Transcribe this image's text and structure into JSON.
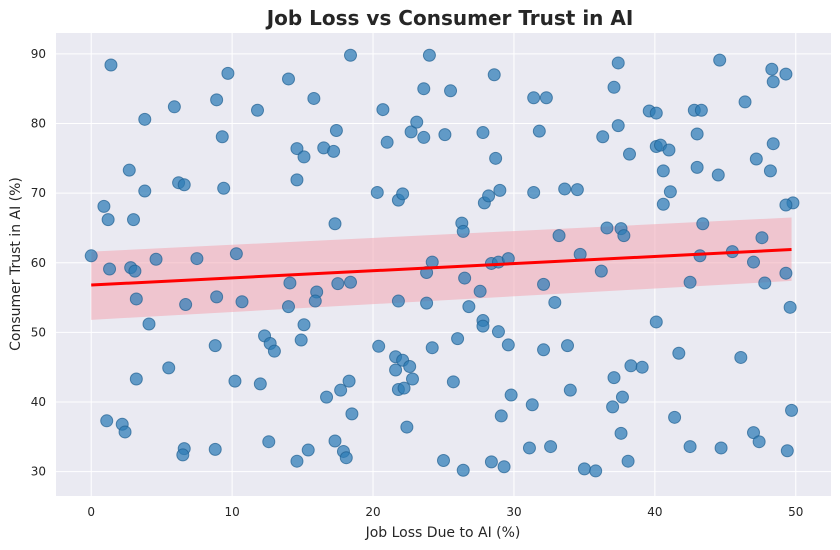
{
  "chart_data": {
    "type": "scatter",
    "title": "Job Loss vs Consumer Trust in AI",
    "xlabel": "Job Loss Due to AI (%)",
    "ylabel": "Consumer Trust in AI (%)",
    "xlim": [
      -2.5,
      52.5
    ],
    "ylim": [
      26.5,
      93
    ],
    "xticks": [
      0,
      10,
      20,
      30,
      40,
      50
    ],
    "yticks": [
      30,
      40,
      50,
      60,
      70,
      80,
      90
    ],
    "grid": true,
    "colors": {
      "background": "#eaeaf2",
      "grid": "#ffffff",
      "points": "#2c7bb6",
      "regression": "#ff0000",
      "ci_band": "#f2a6b3"
    },
    "series": [
      {
        "points": [
          [
            1.4,
            88.4
          ],
          [
            9.7,
            87.2
          ],
          [
            14.0,
            86.4
          ],
          [
            18.4,
            89.8
          ],
          [
            24.0,
            89.8
          ],
          [
            28.6,
            87.0
          ],
          [
            37.4,
            88.7
          ],
          [
            44.6,
            89.1
          ],
          [
            48.3,
            87.8
          ],
          [
            49.3,
            87.1
          ],
          [
            5.9,
            82.4
          ],
          [
            8.9,
            83.4
          ],
          [
            11.8,
            81.9
          ],
          [
            15.8,
            83.6
          ],
          [
            20.7,
            82.0
          ],
          [
            23.6,
            85.0
          ],
          [
            25.5,
            84.7
          ],
          [
            31.4,
            83.7
          ],
          [
            32.3,
            83.7
          ],
          [
            37.1,
            85.2
          ],
          [
            39.6,
            81.8
          ],
          [
            40.1,
            81.5
          ],
          [
            42.8,
            81.9
          ],
          [
            43.3,
            81.9
          ],
          [
            46.4,
            83.1
          ],
          [
            48.4,
            86.0
          ],
          [
            3.8,
            80.6
          ],
          [
            9.3,
            78.1
          ],
          [
            14.6,
            76.4
          ],
          [
            16.5,
            76.5
          ],
          [
            17.4,
            79.0
          ],
          [
            17.2,
            76.0
          ],
          [
            21.0,
            77.3
          ],
          [
            22.7,
            78.8
          ],
          [
            23.1,
            80.2
          ],
          [
            23.6,
            78.0
          ],
          [
            25.1,
            78.4
          ],
          [
            27.8,
            78.7
          ],
          [
            28.7,
            75.0
          ],
          [
            31.8,
            78.9
          ],
          [
            36.3,
            78.1
          ],
          [
            37.4,
            79.7
          ],
          [
            38.2,
            75.6
          ],
          [
            40.1,
            76.7
          ],
          [
            40.4,
            76.9
          ],
          [
            41.0,
            76.2
          ],
          [
            43.0,
            78.5
          ],
          [
            44.5,
            72.6
          ],
          [
            47.2,
            74.9
          ],
          [
            48.4,
            77.1
          ],
          [
            2.7,
            73.3
          ],
          [
            3.8,
            70.3
          ],
          [
            6.2,
            71.5
          ],
          [
            6.6,
            71.2
          ],
          [
            9.4,
            70.7
          ],
          [
            14.6,
            71.9
          ],
          [
            15.1,
            75.2
          ],
          [
            20.3,
            70.1
          ],
          [
            21.8,
            69.0
          ],
          [
            22.1,
            69.9
          ],
          [
            27.9,
            68.6
          ],
          [
            28.2,
            69.6
          ],
          [
            29.0,
            70.4
          ],
          [
            31.4,
            70.1
          ],
          [
            33.6,
            70.6
          ],
          [
            34.5,
            70.5
          ],
          [
            40.6,
            68.4
          ],
          [
            40.6,
            73.2
          ],
          [
            41.1,
            70.2
          ],
          [
            43.0,
            73.7
          ],
          [
            48.2,
            73.2
          ],
          [
            0.0,
            61.0
          ],
          [
            0.9,
            68.1
          ],
          [
            1.2,
            66.2
          ],
          [
            3.0,
            66.2
          ],
          [
            1.3,
            59.1
          ],
          [
            2.8,
            59.3
          ],
          [
            3.1,
            58.8
          ],
          [
            4.6,
            60.5
          ],
          [
            7.5,
            60.6
          ],
          [
            10.3,
            61.3
          ],
          [
            17.3,
            65.6
          ],
          [
            23.8,
            58.6
          ],
          [
            24.2,
            60.1
          ],
          [
            26.3,
            65.7
          ],
          [
            26.4,
            64.5
          ],
          [
            28.4,
            59.9
          ],
          [
            28.9,
            60.1
          ],
          [
            29.6,
            60.6
          ],
          [
            33.2,
            63.9
          ],
          [
            34.7,
            61.2
          ],
          [
            36.2,
            58.8
          ],
          [
            36.6,
            65.0
          ],
          [
            37.6,
            64.9
          ],
          [
            37.8,
            63.9
          ],
          [
            43.2,
            61.0
          ],
          [
            43.4,
            65.6
          ],
          [
            45.5,
            61.6
          ],
          [
            47.0,
            60.1
          ],
          [
            47.6,
            63.6
          ],
          [
            3.2,
            54.8
          ],
          [
            4.1,
            51.2
          ],
          [
            6.7,
            54.0
          ],
          [
            8.9,
            55.1
          ],
          [
            10.7,
            54.4
          ],
          [
            14.0,
            53.7
          ],
          [
            14.1,
            57.1
          ],
          [
            16.0,
            55.8
          ],
          [
            15.9,
            54.5
          ],
          [
            17.5,
            57.0
          ],
          [
            18.4,
            57.2
          ],
          [
            21.8,
            54.5
          ],
          [
            23.8,
            54.2
          ],
          [
            26.5,
            57.8
          ],
          [
            26.8,
            53.7
          ],
          [
            27.6,
            55.9
          ],
          [
            27.8,
            51.7
          ],
          [
            27.8,
            50.9
          ],
          [
            32.1,
            56.9
          ],
          [
            32.9,
            54.3
          ],
          [
            40.1,
            51.5
          ],
          [
            42.5,
            57.2
          ],
          [
            47.8,
            57.1
          ],
          [
            49.3,
            58.5
          ],
          [
            49.6,
            53.6
          ],
          [
            49.8,
            68.6
          ],
          [
            49.3,
            68.3
          ],
          [
            12.3,
            49.5
          ],
          [
            12.7,
            48.4
          ],
          [
            13.0,
            47.3
          ],
          [
            8.8,
            48.1
          ],
          [
            14.9,
            48.9
          ],
          [
            15.1,
            51.1
          ],
          [
            20.4,
            48.0
          ],
          [
            21.6,
            46.5
          ],
          [
            22.1,
            46.0
          ],
          [
            21.6,
            44.6
          ],
          [
            22.6,
            45.1
          ],
          [
            22.8,
            43.3
          ],
          [
            21.8,
            41.8
          ],
          [
            22.2,
            42.0
          ],
          [
            24.2,
            47.8
          ],
          [
            25.7,
            42.9
          ],
          [
            26.0,
            49.1
          ],
          [
            28.9,
            50.1
          ],
          [
            29.6,
            48.2
          ],
          [
            32.1,
            47.5
          ],
          [
            33.8,
            48.1
          ],
          [
            34.0,
            41.7
          ],
          [
            5.5,
            44.9
          ],
          [
            10.2,
            43.0
          ],
          [
            12.0,
            42.6
          ],
          [
            3.2,
            43.3
          ],
          [
            17.7,
            41.7
          ],
          [
            18.3,
            43.0
          ],
          [
            16.7,
            40.7
          ],
          [
            29.8,
            41.0
          ],
          [
            31.3,
            39.6
          ],
          [
            37.1,
            43.5
          ],
          [
            38.3,
            45.2
          ],
          [
            39.1,
            45.0
          ],
          [
            37.0,
            39.3
          ],
          [
            37.7,
            40.7
          ],
          [
            41.7,
            47.0
          ],
          [
            41.4,
            37.8
          ],
          [
            46.1,
            46.4
          ],
          [
            1.1,
            37.3
          ],
          [
            2.2,
            36.8
          ],
          [
            2.4,
            35.7
          ],
          [
            6.6,
            33.3
          ],
          [
            6.5,
            32.4
          ],
          [
            8.8,
            33.2
          ],
          [
            12.6,
            34.3
          ],
          [
            14.6,
            31.5
          ],
          [
            15.4,
            33.1
          ],
          [
            17.3,
            34.4
          ],
          [
            17.9,
            32.9
          ],
          [
            18.1,
            32.0
          ],
          [
            18.5,
            38.3
          ],
          [
            22.4,
            36.4
          ],
          [
            25.0,
            31.6
          ],
          [
            26.4,
            30.2
          ],
          [
            28.4,
            31.4
          ],
          [
            29.1,
            38.0
          ],
          [
            29.3,
            30.7
          ],
          [
            31.1,
            33.4
          ],
          [
            32.6,
            33.6
          ],
          [
            35.0,
            30.4
          ],
          [
            35.8,
            30.1
          ],
          [
            37.6,
            35.5
          ],
          [
            38.1,
            31.5
          ],
          [
            42.5,
            33.6
          ],
          [
            44.7,
            33.4
          ],
          [
            47.0,
            35.6
          ],
          [
            47.4,
            34.3
          ],
          [
            49.4,
            33.0
          ],
          [
            49.7,
            38.8
          ]
        ]
      }
    ],
    "regression": {
      "x_range": [
        0,
        49.7
      ],
      "y_values": [
        56.8,
        61.9
      ],
      "ci_lower": [
        51.8,
        57.4
      ],
      "ci_upper": [
        61.6,
        66.5
      ]
    }
  }
}
